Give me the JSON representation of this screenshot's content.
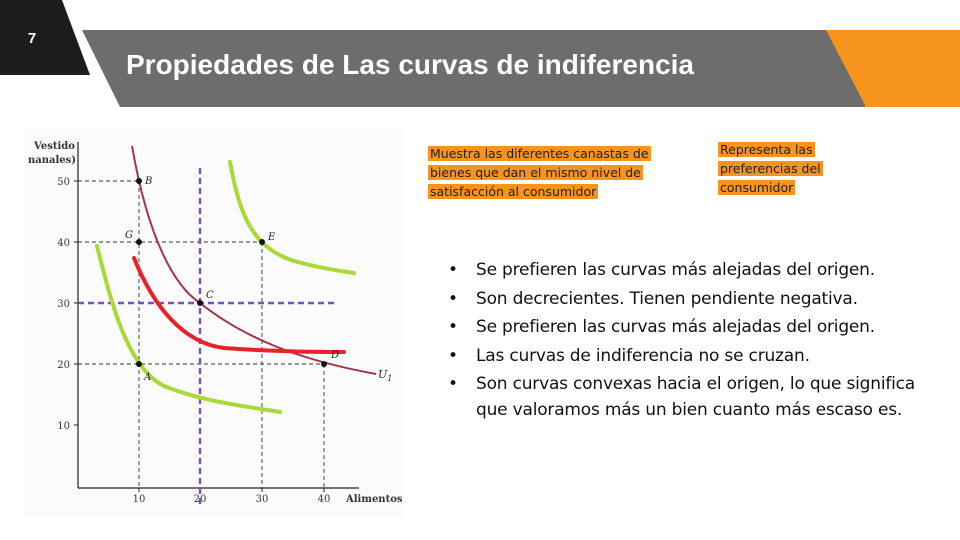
{
  "slide": {
    "number": "7",
    "title": "Propiedades de Las curvas de indiferencia"
  },
  "figure": {
    "ylabel_line1": "Vestido",
    "ylabel_line2": "nanales)",
    "xlabel": "Alimentos",
    "y_ticks": [
      "50",
      "40",
      "30",
      "20",
      "10"
    ],
    "x_ticks": [
      "10",
      "20",
      "30",
      "40"
    ],
    "point_labels": [
      "B",
      "G",
      "E",
      "C",
      "D",
      "A"
    ],
    "curve_label": "U",
    "curve_label_sub": "1"
  },
  "notes": {
    "definition": "Muestra las diferentes canastas de bienes que dan el mismo nivel de satisfacción al consumidor",
    "preferences": "Representa las preferencias del consumidor"
  },
  "bullets": [
    "Se prefieren las curvas más alejadas del origen.",
    "Son decrecientes. Tienen pendiente negativa.",
    "Se prefieren las curvas más alejadas del origen.",
    "Las curvas de indiferencia no se cruzan.",
    "Son curvas convexas hacia el origen, lo que significa que valoramos más un bien cuanto más escaso es."
  ],
  "colors": {
    "header_gray": "#6d6d6d",
    "badge_black": "#1c1c1c",
    "accent_orange": "#f7941d",
    "curve_dark_red": "#a3324a",
    "curve_bright_red": "#e8212b",
    "curve_green": "#a8d936",
    "guide_purple": "#7a4fc0"
  }
}
